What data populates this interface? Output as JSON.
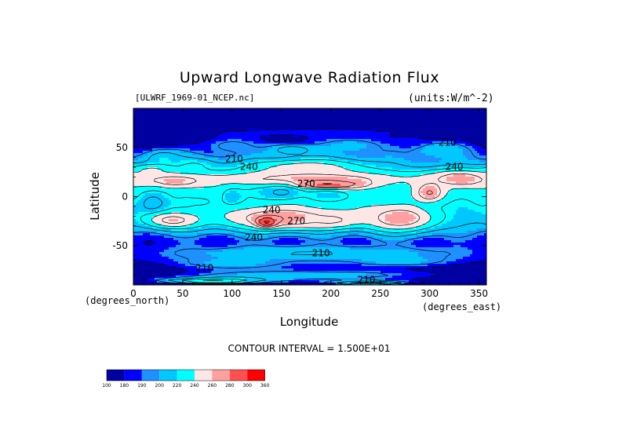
{
  "chart_data": {
    "type": "heatmap",
    "title": "Upward Longwave Radiation Flux",
    "dataset": "[ULWRF_1969-01_NCEP.nc]",
    "units": "(units:W/m^-2)",
    "xlabel": "Longitude",
    "ylabel": "Latitude",
    "x_units": "(degrees_north)",
    "y_units": "(degrees_east)",
    "xlim": [
      0,
      357.5
    ],
    "ylim": [
      -90,
      90
    ],
    "x_ticks": [
      0,
      50,
      100,
      150,
      200,
      250,
      300,
      350
    ],
    "y_ticks": [
      50,
      0,
      -50
    ],
    "contour_interval_text": "CONTOUR INTERVAL = 1.500E+01",
    "colorbar": {
      "levels": [
        100,
        180,
        190,
        200,
        220,
        240,
        260,
        280,
        300,
        360
      ],
      "colors": [
        "#0000a0",
        "#0000ff",
        "#1e90ff",
        "#00c8ff",
        "#00ffff",
        "#ffe6e6",
        "#ffa0a0",
        "#ff5050",
        "#ff0000"
      ]
    },
    "contour_labels": [
      {
        "text": "210",
        "lon": 102,
        "lat": 38
      },
      {
        "text": "240",
        "lon": 117,
        "lat": 30
      },
      {
        "text": "210",
        "lon": 318,
        "lat": 55
      },
      {
        "text": "240",
        "lon": 325,
        "lat": 30
      },
      {
        "text": "270",
        "lon": 175,
        "lat": 13
      },
      {
        "text": "240",
        "lon": 140,
        "lat": -14
      },
      {
        "text": "270",
        "lon": 165,
        "lat": -25
      },
      {
        "text": "240",
        "lon": 122,
        "lat": -42
      },
      {
        "text": "210",
        "lon": 190,
        "lat": -58
      },
      {
        "text": "210",
        "lon": 72,
        "lat": -73
      },
      {
        "text": "210",
        "lon": 236,
        "lat": -85
      }
    ],
    "blobs": [
      {
        "lon": 180,
        "lat": 80,
        "rx": 200,
        "ry": 14,
        "v": 130
      },
      {
        "lon": 180,
        "lat": 66,
        "rx": 190,
        "ry": 8,
        "v": 185
      },
      {
        "lon": 100,
        "lat": 52,
        "rx": 35,
        "ry": 10,
        "v": 200
      },
      {
        "lon": 220,
        "lat": 52,
        "rx": 45,
        "ry": 10,
        "v": 205
      },
      {
        "lon": 310,
        "lat": 48,
        "rx": 35,
        "ry": 10,
        "v": 210
      },
      {
        "lon": 160,
        "lat": 48,
        "rx": 25,
        "ry": 6,
        "v": 220
      },
      {
        "lon": 280,
        "lat": 56,
        "rx": 15,
        "ry": 6,
        "v": 185
      },
      {
        "lon": 30,
        "lat": 40,
        "rx": 22,
        "ry": 9,
        "v": 220
      },
      {
        "lon": 20,
        "lat": 28,
        "rx": 25,
        "ry": 6,
        "v": 240
      },
      {
        "lon": 60,
        "lat": 32,
        "rx": 25,
        "ry": 8,
        "v": 225
      },
      {
        "lon": 175,
        "lat": 30,
        "rx": 70,
        "ry": 10,
        "v": 248
      },
      {
        "lon": 180,
        "lat": 18,
        "rx": 110,
        "ry": 8,
        "v": 265
      },
      {
        "lon": 40,
        "lat": 16,
        "rx": 40,
        "ry": 8,
        "v": 265
      },
      {
        "lon": 330,
        "lat": 18,
        "rx": 35,
        "ry": 10,
        "v": 268
      },
      {
        "lon": 195,
        "lat": 12,
        "rx": 40,
        "ry": 4,
        "v": 290
      },
      {
        "lon": 150,
        "lat": 4,
        "rx": 22,
        "ry": 9,
        "v": 205
      },
      {
        "lon": 200,
        "lat": 0,
        "rx": 25,
        "ry": 6,
        "v": 215
      },
      {
        "lon": 100,
        "lat": -2,
        "rx": 12,
        "ry": 10,
        "v": 210
      },
      {
        "lon": 20,
        "lat": -8,
        "rx": 16,
        "ry": 14,
        "v": 200
      },
      {
        "lon": 300,
        "lat": -6,
        "rx": 20,
        "ry": 16,
        "v": 195
      },
      {
        "lon": 70,
        "lat": -6,
        "rx": 15,
        "ry": 6,
        "v": 220
      },
      {
        "lon": 150,
        "lat": -22,
        "rx": 65,
        "ry": 13,
        "v": 270
      },
      {
        "lon": 135,
        "lat": -26,
        "rx": 10,
        "ry": 5,
        "v": 305
      },
      {
        "lon": 270,
        "lat": -22,
        "rx": 40,
        "ry": 15,
        "v": 268
      },
      {
        "lon": 40,
        "lat": -24,
        "rx": 30,
        "ry": 9,
        "v": 262
      },
      {
        "lon": 200,
        "lat": -24,
        "rx": 30,
        "ry": 8,
        "v": 258
      },
      {
        "lon": 300,
        "lat": 4,
        "rx": 18,
        "ry": 12,
        "v": 272
      },
      {
        "lon": 180,
        "lat": -58,
        "rx": 200,
        "ry": 10,
        "v": 212
      },
      {
        "lon": 100,
        "lat": -68,
        "rx": 80,
        "ry": 8,
        "v": 205
      },
      {
        "lon": 270,
        "lat": -66,
        "rx": 70,
        "ry": 7,
        "v": 205
      },
      {
        "lon": 180,
        "lat": -80,
        "rx": 200,
        "ry": 8,
        "v": 208
      },
      {
        "lon": 80,
        "lat": -86,
        "rx": 70,
        "ry": 4,
        "v": 245
      },
      {
        "lon": 240,
        "lat": -88,
        "rx": 60,
        "ry": 3,
        "v": 235
      }
    ]
  }
}
